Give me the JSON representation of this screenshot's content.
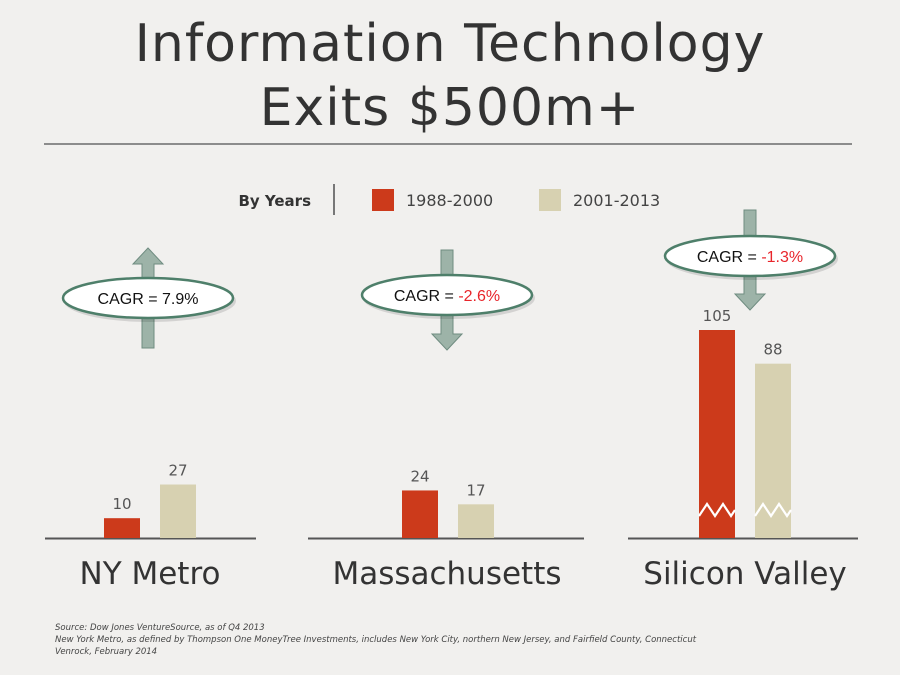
{
  "title_line1": "Information Technology",
  "title_line2": "Exits $500m+",
  "colors": {
    "series1": "#cc3a1b",
    "series2": "#d7d1b1",
    "red_text": "#e8252b",
    "arrow": "#9db3a8"
  },
  "chart_data": {
    "type": "bar",
    "legend": {
      "title": "By Years",
      "placement": "top-center"
    },
    "series": [
      {
        "name": "1988-2000"
      },
      {
        "name": "2001-2013"
      }
    ],
    "panels": [
      {
        "name": "NY Metro",
        "values": [
          10,
          27
        ],
        "cagr_label": "CAGR = ",
        "cagr_value": "7.9%",
        "trend": "up",
        "axis_break": false
      },
      {
        "name": "Massachusetts",
        "values": [
          24,
          17
        ],
        "cagr_label": "CAGR = ",
        "cagr_value": "-2.6%",
        "trend": "down",
        "axis_break": false
      },
      {
        "name": "Silicon Valley",
        "values": [
          105,
          88
        ],
        "cagr_label": "CAGR = ",
        "cagr_value": "-1.3%",
        "trend": "down",
        "axis_break": true
      }
    ]
  },
  "source_lines": [
    "Source: Dow Jones VentureSource, as of Q4 2013",
    "New York Metro, as defined by Thompson One MoneyTree Investments, includes New York City, northern New Jersey, and Fairfield County, Connecticut",
    "Venrock, February 2014"
  ]
}
